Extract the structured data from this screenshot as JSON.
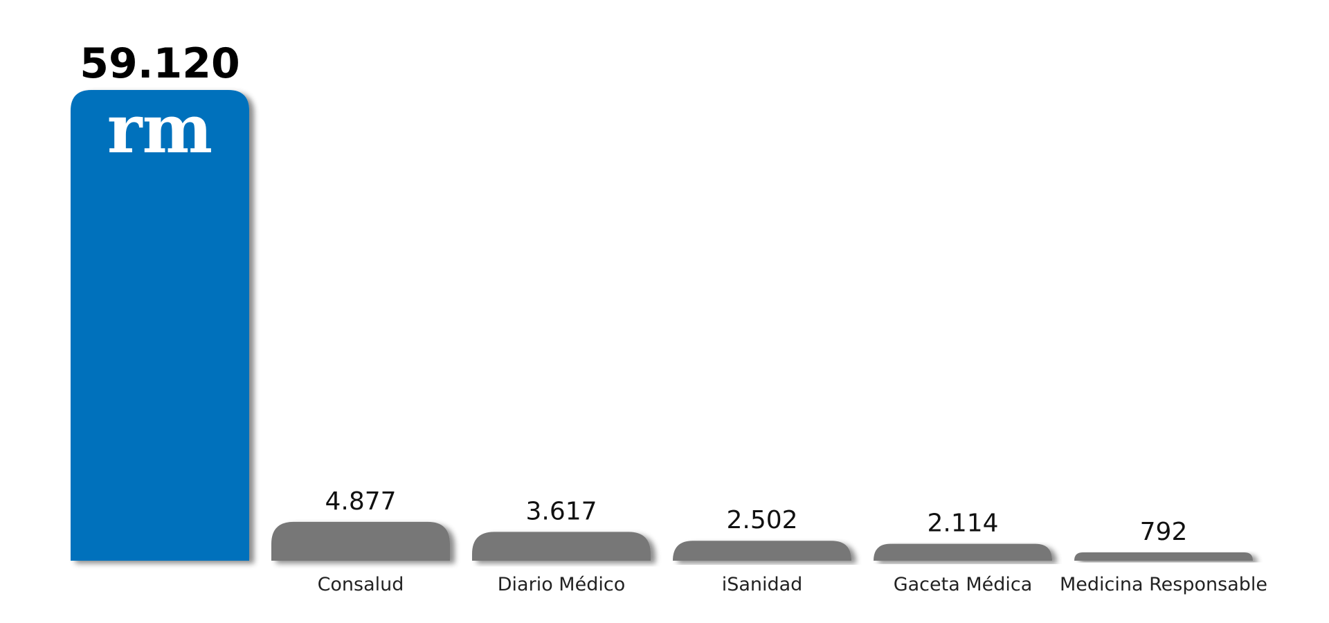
{
  "chart_data": {
    "type": "bar",
    "categories": [
      "",
      "Consalud",
      "Diario Médico",
      "iSanidad",
      "Gaceta Médica",
      "Medicina Responsable"
    ],
    "values": [
      59120,
      4877,
      3617,
      2502,
      2114,
      792
    ],
    "value_labels": [
      "59.120",
      "4.877",
      "3.617",
      "2.502",
      "2.114",
      "792"
    ],
    "highlight_index": 0,
    "highlight_logo": "rm",
    "colors": {
      "highlight": "#0071bc",
      "default": "#777777",
      "shadow": "#000000"
    },
    "title": "",
    "xlabel": "",
    "ylabel": "",
    "ylim": [
      0,
      59120
    ],
    "grid": false,
    "legend": "none"
  }
}
